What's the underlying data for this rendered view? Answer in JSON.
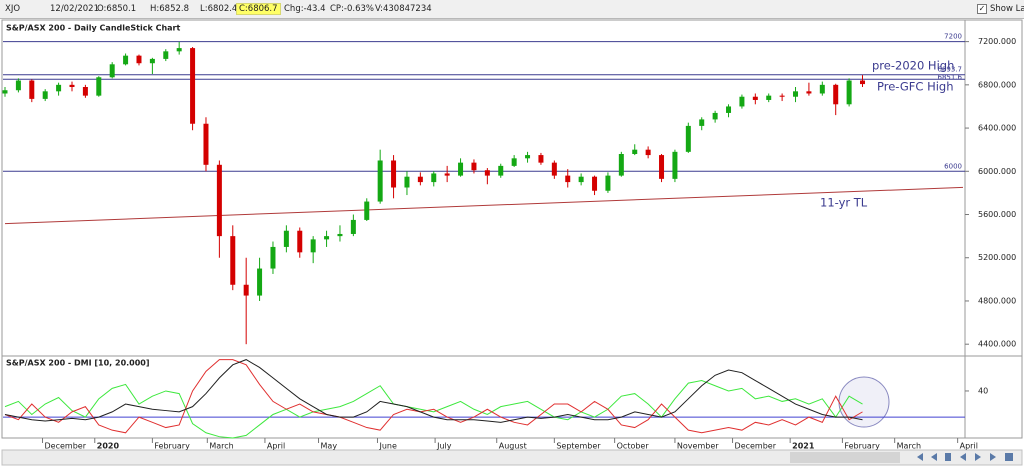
{
  "toolbar": {
    "symbol": "XJO",
    "date": "12/02/2021",
    "open": "O:6850.1",
    "high": "H:6852.8",
    "low": "L:6802.4",
    "close": "C:6806.7",
    "change": "Chg:-43.4",
    "change_pct": "CP:-0.63%",
    "volume": "V:430847234",
    "show_last": "Show Last"
  },
  "chart_data": [
    {
      "type": "candlestick",
      "title": "S&P/ASX 200 - Daily CandleStick Chart",
      "up_color": "#14a814",
      "down_color": "#d40000",
      "x": [
        0,
        1,
        2,
        3,
        4,
        5,
        6,
        7,
        8,
        9,
        10,
        11,
        12,
        13,
        14,
        15,
        16,
        17,
        18,
        19,
        20,
        21,
        22,
        23,
        24,
        25,
        26,
        27,
        28,
        29,
        30,
        31,
        32,
        33,
        34,
        35,
        36,
        37,
        38,
        39,
        40,
        41,
        42,
        43,
        44,
        45,
        46,
        47,
        48,
        49,
        50,
        51,
        52,
        53,
        54,
        55,
        56,
        57,
        58,
        59,
        60,
        61,
        62,
        63,
        64
      ],
      "open": [
        6720,
        6750,
        6840,
        6670,
        6740,
        6800,
        6780,
        6700,
        6870,
        6990,
        7070,
        7000,
        7040,
        7110,
        7140,
        6440,
        6060,
        5400,
        4950,
        4850,
        5100,
        5300,
        5450,
        5250,
        5370,
        5400,
        5420,
        5550,
        5720,
        6100,
        5850,
        5950,
        5900,
        5980,
        5960,
        6080,
        6010,
        5960,
        6050,
        6120,
        6150,
        6080,
        5960,
        5900,
        5950,
        5820,
        5960,
        6160,
        6200,
        6150,
        5930,
        6180,
        6420,
        6480,
        6540,
        6600,
        6690,
        6660,
        6700,
        6690,
        6740,
        6720,
        6800,
        6620,
        6840
      ],
      "high": [
        6780,
        6860,
        6850,
        6760,
        6820,
        6830,
        6800,
        6880,
        7010,
        7090,
        7080,
        7050,
        7130,
        7197,
        7150,
        6500,
        6100,
        5500,
        5200,
        5200,
        5350,
        5500,
        5480,
        5400,
        5450,
        5500,
        5600,
        5750,
        6200,
        6150,
        6000,
        5990,
        6000,
        6050,
        6120,
        6110,
        6030,
        6070,
        6150,
        6180,
        6170,
        6100,
        6020,
        5980,
        5960,
        5990,
        6180,
        6250,
        6230,
        6160,
        6200,
        6450,
        6500,
        6560,
        6620,
        6710,
        6720,
        6720,
        6720,
        6780,
        6820,
        6830,
        6810,
        6860,
        6890
      ],
      "low": [
        6690,
        6730,
        6640,
        6650,
        6700,
        6740,
        6680,
        6690,
        6860,
        6980,
        6980,
        6900,
        7020,
        7080,
        6380,
        6000,
        5200,
        4900,
        4400,
        4800,
        5050,
        5250,
        5200,
        5150,
        5300,
        5350,
        5400,
        5540,
        5700,
        5750,
        5780,
        5870,
        5860,
        5900,
        5950,
        5980,
        5880,
        5940,
        6040,
        6080,
        6060,
        5930,
        5850,
        5870,
        5780,
        5800,
        5950,
        6150,
        6120,
        5900,
        5900,
        6170,
        6380,
        6450,
        6500,
        6580,
        6620,
        6640,
        6650,
        6640,
        6700,
        6700,
        6520,
        6600,
        6780
      ],
      "close": [
        6750,
        6840,
        6670,
        6740,
        6800,
        6780,
        6700,
        6870,
        6990,
        7070,
        7000,
        7040,
        7110,
        7140,
        6440,
        6060,
        5400,
        4950,
        4850,
        5100,
        5300,
        5450,
        5250,
        5370,
        5400,
        5420,
        5550,
        5720,
        6100,
        5850,
        5950,
        5900,
        5980,
        5960,
        6080,
        6010,
        5960,
        6050,
        6120,
        6150,
        6080,
        5960,
        5900,
        5950,
        5820,
        5960,
        6160,
        6200,
        6150,
        5930,
        6180,
        6420,
        6480,
        6540,
        6600,
        6690,
        6660,
        6700,
        6690,
        6740,
        6720,
        6800,
        6620,
        6840,
        6807
      ],
      "xlim": [
        0,
        71.5
      ],
      "ylim": [
        4300,
        7400
      ],
      "yticks": [
        {
          "value": 4400,
          "label": "4400.000"
        },
        {
          "value": 4800,
          "label": "4800.000"
        },
        {
          "value": 5200,
          "label": "5200.000"
        },
        {
          "value": 5600,
          "label": "5600.000"
        },
        {
          "value": 6000,
          "label": "6000.000"
        },
        {
          "value": 6400,
          "label": "6400.000"
        },
        {
          "value": 6800,
          "label": "6800.000"
        },
        {
          "value": 7200,
          "label": "7200.000"
        }
      ],
      "levels": [
        {
          "value": 7200,
          "label": "7200"
        },
        {
          "value": 6893.7,
          "label": "6893.7"
        },
        {
          "value": 6851.6,
          "label": "6851.6"
        },
        {
          "value": 6000,
          "label": "6000"
        }
      ],
      "level_color": "#3b3b8f",
      "trendline": {
        "x": [
          0,
          71.5
        ],
        "y": [
          5516,
          5851
        ],
        "color": "#b03a3a"
      },
      "annotations": [
        "pre-2020 High",
        "Pre-GFC High",
        "11-yr TL"
      ]
    },
    {
      "type": "line",
      "title": "S&P/ASX 200 - DMI [10, 20.000]",
      "x": [
        0,
        1,
        2,
        3,
        4,
        5,
        6,
        7,
        8,
        9,
        10,
        11,
        12,
        13,
        14,
        15,
        16,
        17,
        18,
        19,
        20,
        21,
        22,
        23,
        24,
        25,
        26,
        27,
        28,
        29,
        30,
        31,
        32,
        33,
        34,
        35,
        36,
        37,
        38,
        39,
        40,
        41,
        42,
        43,
        44,
        45,
        46,
        47,
        48,
        49,
        50,
        51,
        52,
        53,
        54,
        55,
        56,
        57,
        58,
        59,
        60,
        61,
        62,
        63,
        64
      ],
      "series": [
        {
          "color": "#3ee83e",
          "values": [
            28,
            32,
            22,
            30,
            35,
            25,
            20,
            34,
            42,
            45,
            30,
            36,
            40,
            38,
            15,
            8,
            5,
            4,
            6,
            14,
            22,
            26,
            20,
            24,
            26,
            28,
            32,
            38,
            44,
            30,
            28,
            26,
            24,
            28,
            32,
            26,
            22,
            28,
            30,
            32,
            26,
            20,
            18,
            24,
            20,
            26,
            36,
            38,
            30,
            20,
            34,
            46,
            48,
            44,
            40,
            42,
            34,
            36,
            32,
            34,
            30,
            34,
            20,
            36,
            30
          ]
        },
        {
          "color": "#e03030",
          "values": [
            22,
            18,
            30,
            20,
            16,
            24,
            28,
            14,
            10,
            8,
            20,
            16,
            12,
            14,
            40,
            55,
            64,
            64,
            60,
            45,
            32,
            26,
            30,
            24,
            22,
            20,
            16,
            12,
            10,
            22,
            26,
            24,
            26,
            20,
            16,
            20,
            26,
            20,
            16,
            14,
            22,
            30,
            30,
            24,
            32,
            26,
            14,
            12,
            18,
            30,
            20,
            10,
            8,
            10,
            12,
            10,
            16,
            14,
            18,
            14,
            20,
            16,
            36,
            18,
            24
          ]
        },
        {
          "color": "#202020",
          "values": [
            22,
            20,
            18,
            17,
            18,
            19,
            18,
            20,
            24,
            30,
            28,
            26,
            25,
            24,
            28,
            38,
            50,
            60,
            64,
            58,
            50,
            42,
            34,
            28,
            22,
            20,
            20,
            24,
            32,
            30,
            28,
            24,
            20,
            18,
            18,
            18,
            17,
            16,
            18,
            20,
            19,
            20,
            22,
            20,
            18,
            18,
            20,
            24,
            22,
            20,
            24,
            34,
            44,
            52,
            56,
            54,
            48,
            42,
            36,
            30,
            26,
            22,
            20,
            20,
            18
          ]
        }
      ],
      "levels": [
        {
          "value": 20,
          "color": "#4040d0"
        }
      ],
      "xlim": [
        0,
        71.5
      ],
      "ylim": [
        4,
        66
      ],
      "yticks": [
        40
      ],
      "xticks": [
        {
          "value": 2.8,
          "label": "December"
        },
        {
          "value": 6.7,
          "label": "2020"
        },
        {
          "value": 11.0,
          "label": "February"
        },
        {
          "value": 15.1,
          "label": "March"
        },
        {
          "value": 19.4,
          "label": "April"
        },
        {
          "value": 23.4,
          "label": "May"
        },
        {
          "value": 27.8,
          "label": "June"
        },
        {
          "value": 32.1,
          "label": "July"
        },
        {
          "value": 36.7,
          "label": "August"
        },
        {
          "value": 41.0,
          "label": "September"
        },
        {
          "value": 45.5,
          "label": "October"
        },
        {
          "value": 50.0,
          "label": "November"
        },
        {
          "value": 54.3,
          "label": "December"
        },
        {
          "value": 58.6,
          "label": "2021"
        },
        {
          "value": 62.5,
          "label": "February"
        },
        {
          "value": 66.4,
          "label": "March"
        },
        {
          "value": 71.1,
          "label": "April"
        }
      ]
    }
  ]
}
